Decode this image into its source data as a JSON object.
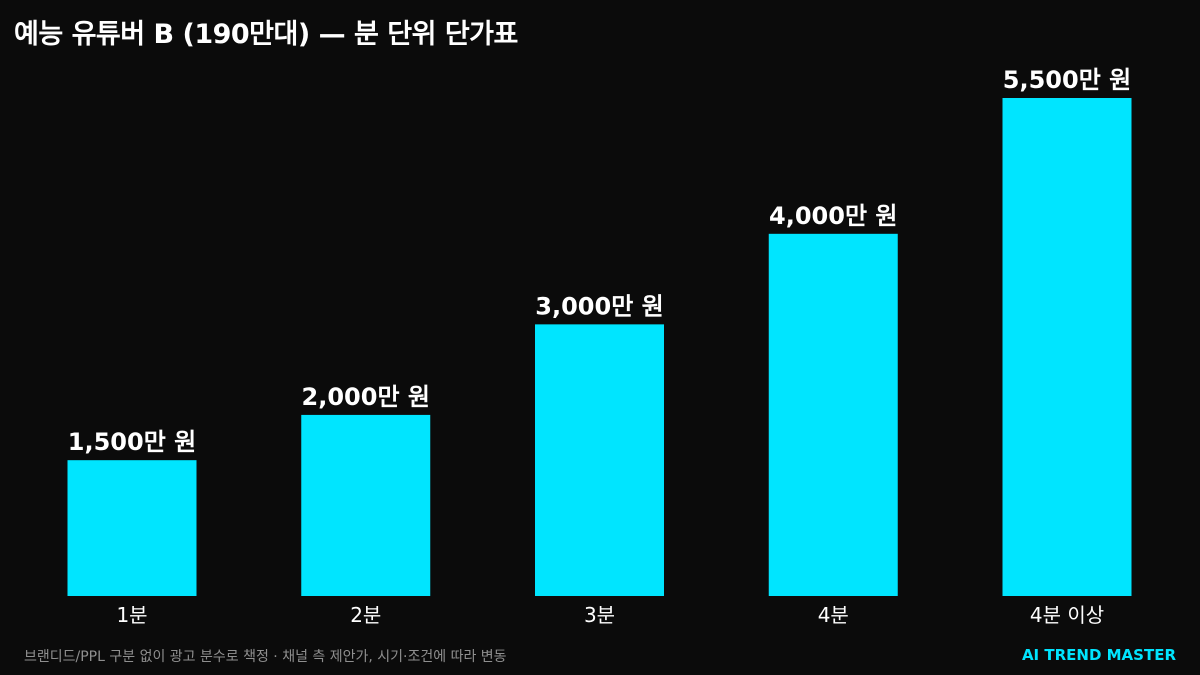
{
  "colors": {
    "background": "#0b0b0b",
    "bar": "#00e5ff",
    "text": "#ffffff",
    "footnote": "#8f8f8f",
    "brand": "#00e5ff"
  },
  "footnote": "브랜디드/PPL 구분 없이 광고 분수로 책정 · 채널 측 제안가, 시기·조건에 따라 변동",
  "brand": "AI TREND MASTER",
  "chart_data": {
    "type": "bar",
    "title": "예능 유튜버 B (190만대) — 분 단위 단가표",
    "categories": [
      "1분",
      "2분",
      "3분",
      "4분",
      "4분 이상"
    ],
    "values": [
      1500,
      2000,
      3000,
      4000,
      5500
    ],
    "value_labels": [
      "1,500만 원",
      "2,000만 원",
      "3,000만 원",
      "4,000만 원",
      "5,500만 원"
    ],
    "unit": "만 원",
    "ylim": [
      0,
      5500
    ],
    "grid": false,
    "legend": "none"
  }
}
